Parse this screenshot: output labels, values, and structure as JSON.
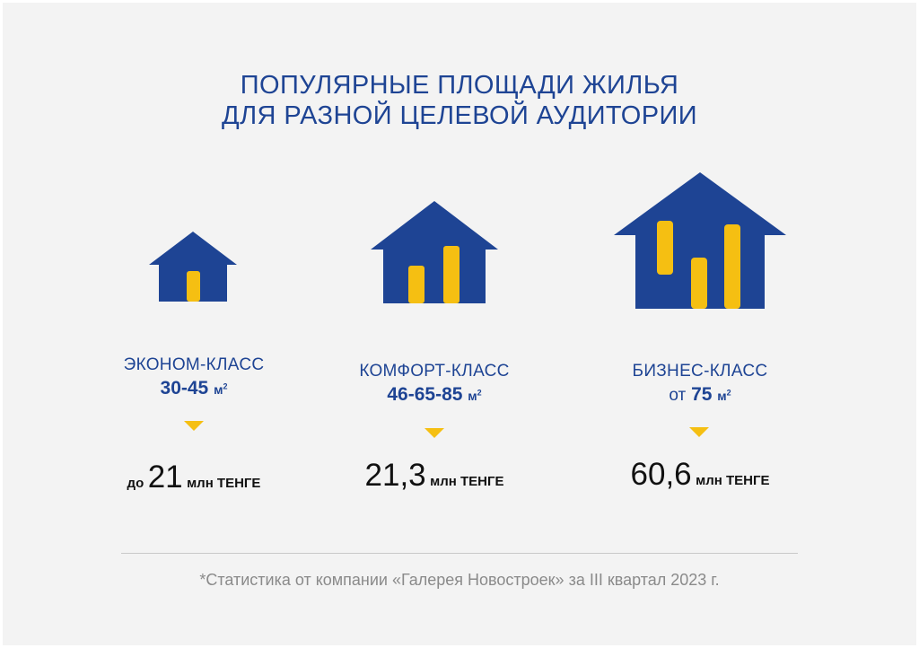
{
  "title": {
    "line1": "ПОПУЛЯРНЫЕ ПЛОЩАДИ ЖИЛЬЯ",
    "line2": "ДЛЯ РАЗНОЙ ЦЕЛЕВОЙ АУДИТОРИИ"
  },
  "colors": {
    "brand_blue": "#1e4494",
    "accent_yellow": "#f5bf12"
  },
  "classes": [
    {
      "name": "ЭКОНОМ-КЛАСС",
      "area_prefix": "",
      "area": "30-45",
      "unit": "м",
      "unit_sup": "2",
      "price_prefix": "до",
      "price": "21",
      "price_unit": "млн ТЕНГЕ",
      "icon": "house-small-icon"
    },
    {
      "name": "КОМФОРТ-КЛАСС",
      "area_prefix": "",
      "area": "46-65-85",
      "unit": "м",
      "unit_sup": "2",
      "price_prefix": "",
      "price": "21,3",
      "price_unit": "млн ТЕНГЕ",
      "icon": "house-medium-icon"
    },
    {
      "name": "БИЗНЕС-КЛАСС",
      "area_prefix": "от",
      "area": "75",
      "unit": "м",
      "unit_sup": "2",
      "price_prefix": "",
      "price": "60,6",
      "price_unit": "млн ТЕНГЕ",
      "icon": "house-large-icon"
    }
  ],
  "footnote": "*Статистика от компании «Галерея Новостроек» за III квартал 2023 г."
}
